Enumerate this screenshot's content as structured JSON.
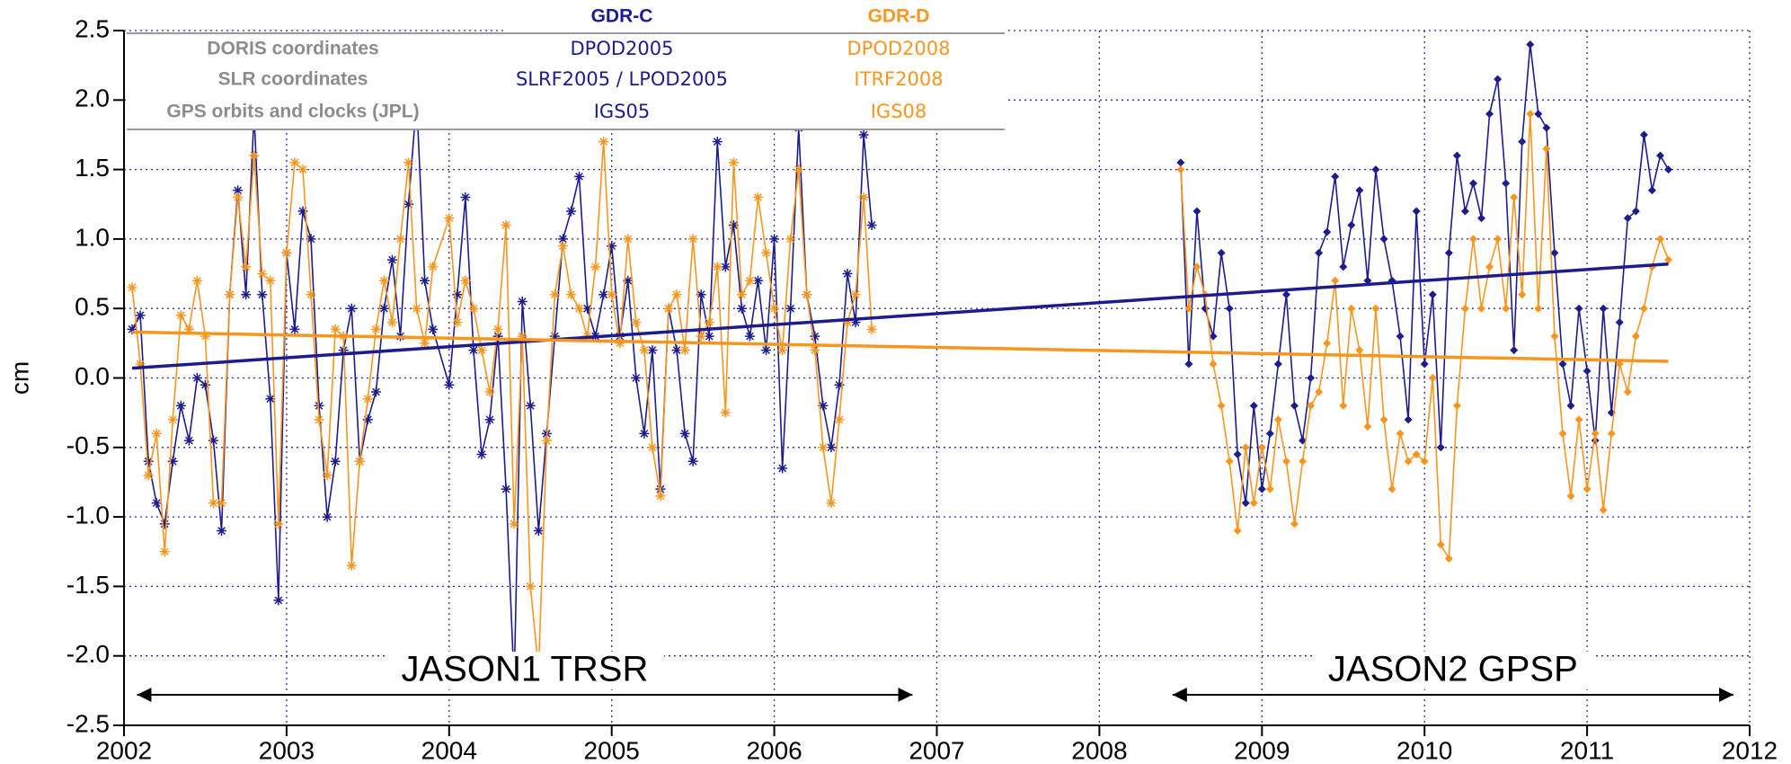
{
  "chart_data": {
    "type": "line",
    "y_label": "cm",
    "xlim": [
      2002,
      2012
    ],
    "xticks": [
      2002,
      2003,
      2004,
      2005,
      2006,
      2007,
      2008,
      2009,
      2010,
      2011,
      2012
    ],
    "ylim": [
      -2.5,
      2.5
    ],
    "yticks": [
      {
        "value": -2.5,
        "label": "-2.5"
      },
      {
        "value": -2,
        "label": "-2.0"
      },
      -1.5,
      {
        "value": -1,
        "label": "-1.0"
      },
      -0.5,
      {
        "value": 0,
        "label": "0.0"
      },
      0.5,
      {
        "value": 1,
        "label": "1.0"
      },
      1.5,
      {
        "value": 2,
        "label": "2.0"
      },
      2.5
    ],
    "grid": true,
    "legend_table": {
      "columns": [
        "GDR-C",
        "GDR-D"
      ],
      "column_colors": [
        "#1c1c8e",
        "#f7961e"
      ],
      "rows": [
        [
          "DORIS coordinates",
          "DPOD2005",
          "DPOD2008"
        ],
        [
          "SLR coordinates",
          "SLRF2005 / LPOD2005",
          "ITRF2008"
        ],
        [
          "GPS orbits and clocks (JPL)",
          "IGS05",
          "IGS08"
        ]
      ]
    },
    "series": [
      {
        "color": "#1c1c8e",
        "marker": "asterisk",
        "x": [
          2002.05,
          2002.1,
          2002.15,
          2002.2,
          2002.25,
          2002.3,
          2002.35,
          2002.4,
          2002.45,
          2002.5,
          2002.55,
          2002.6,
          2002.65,
          2002.7,
          2002.75,
          2002.8,
          2002.85,
          2002.9,
          2002.95,
          2003.0,
          2003.05,
          2003.1,
          2003.15,
          2003.2,
          2003.25,
          2003.3,
          2003.35,
          2003.4,
          2003.45,
          2003.5,
          2003.55,
          2003.6,
          2003.65,
          2003.7,
          2003.75,
          2003.8,
          2003.85,
          2003.9,
          2004.0,
          2004.05,
          2004.1,
          2004.15,
          2004.2,
          2004.25,
          2004.3,
          2004.35,
          2004.4,
          2004.45,
          2004.5,
          2004.55,
          2004.6,
          2004.65,
          2004.7,
          2004.75,
          2004.8,
          2004.85,
          2004.9,
          2004.95,
          2005.0,
          2005.05,
          2005.1,
          2005.15,
          2005.2,
          2005.25,
          2005.3,
          2005.35,
          2005.4,
          2005.45,
          2005.5,
          2005.55,
          2005.6,
          2005.65,
          2005.7,
          2005.75,
          2005.8,
          2005.85,
          2005.9,
          2005.95,
          2006.0,
          2006.05,
          2006.1,
          2006.15,
          2006.2,
          2006.25,
          2006.3,
          2006.35,
          2006.4,
          2006.45,
          2006.5,
          2006.55,
          2006.6
        ],
        "values": [
          0.35,
          0.45,
          -0.6,
          -0.9,
          -1.05,
          -0.6,
          -0.2,
          -0.45,
          0.0,
          -0.05,
          -0.45,
          -1.1,
          0.6,
          1.35,
          0.6,
          1.9,
          0.6,
          -0.15,
          -1.6,
          0.9,
          0.35,
          1.2,
          1.0,
          -0.2,
          -1.0,
          -0.6,
          0.2,
          0.5,
          -0.6,
          -0.3,
          -0.1,
          0.5,
          0.85,
          0.3,
          1.25,
          2.0,
          0.7,
          0.35,
          -0.05,
          0.6,
          1.3,
          0.2,
          -0.55,
          -0.3,
          0.3,
          -0.8,
          -2.2,
          0.55,
          -0.2,
          -1.1,
          -0.4,
          0.3,
          1.0,
          1.2,
          1.45,
          0.5,
          0.3,
          0.6,
          0.95,
          0.3,
          0.7,
          0.0,
          -0.4,
          0.2,
          -0.8,
          0.5,
          0.2,
          -0.4,
          -0.6,
          0.6,
          0.3,
          1.7,
          0.8,
          1.1,
          0.5,
          0.3,
          0.7,
          0.2,
          1.0,
          -0.65,
          0.5,
          1.8,
          0.6,
          0.3,
          -0.2,
          -0.5,
          -0.05,
          0.75,
          0.4,
          1.75,
          1.1
        ]
      },
      {
        "color": "#f7961e",
        "marker": "asterisk",
        "x": [
          2002.05,
          2002.1,
          2002.15,
          2002.2,
          2002.25,
          2002.3,
          2002.35,
          2002.4,
          2002.45,
          2002.5,
          2002.55,
          2002.6,
          2002.65,
          2002.7,
          2002.75,
          2002.8,
          2002.85,
          2002.9,
          2002.95,
          2003.0,
          2003.05,
          2003.1,
          2003.15,
          2003.2,
          2003.25,
          2003.3,
          2003.35,
          2003.4,
          2003.45,
          2003.5,
          2003.55,
          2003.6,
          2003.65,
          2003.7,
          2003.75,
          2003.8,
          2003.85,
          2003.9,
          2004.0,
          2004.05,
          2004.1,
          2004.15,
          2004.2,
          2004.25,
          2004.3,
          2004.35,
          2004.4,
          2004.45,
          2004.5,
          2004.55,
          2004.6,
          2004.65,
          2004.7,
          2004.75,
          2004.8,
          2004.85,
          2004.9,
          2004.95,
          2005.0,
          2005.05,
          2005.1,
          2005.15,
          2005.2,
          2005.25,
          2005.3,
          2005.35,
          2005.4,
          2005.45,
          2005.5,
          2005.55,
          2005.6,
          2005.65,
          2005.7,
          2005.75,
          2005.8,
          2005.85,
          2005.9,
          2005.95,
          2006.0,
          2006.05,
          2006.1,
          2006.15,
          2006.2,
          2006.25,
          2006.3,
          2006.35,
          2006.4,
          2006.45,
          2006.5,
          2006.55,
          2006.6
        ],
        "values": [
          0.65,
          0.1,
          -0.7,
          -0.4,
          -1.25,
          -0.3,
          0.45,
          0.35,
          0.7,
          0.3,
          -0.9,
          -0.9,
          0.6,
          1.3,
          0.8,
          1.6,
          0.75,
          0.7,
          -1.05,
          0.9,
          1.55,
          1.5,
          0.6,
          -0.3,
          -0.7,
          0.35,
          0.3,
          -1.35,
          -0.6,
          -0.15,
          0.35,
          0.7,
          0.4,
          1.0,
          1.55,
          0.5,
          0.25,
          0.8,
          1.15,
          0.4,
          0.7,
          0.5,
          0.2,
          -0.1,
          0.35,
          1.1,
          -1.05,
          0.3,
          -1.5,
          -2.1,
          -0.45,
          0.6,
          0.95,
          0.6,
          0.5,
          0.3,
          0.8,
          1.7,
          0.6,
          0.25,
          1.0,
          0.4,
          0.2,
          -0.5,
          -0.85,
          0.5,
          0.6,
          0.2,
          1.0,
          0.3,
          0.4,
          0.8,
          -0.25,
          1.55,
          0.6,
          0.7,
          1.3,
          0.9,
          0.5,
          0.2,
          1.0,
          1.5,
          0.6,
          0.2,
          -0.5,
          -0.9,
          -0.3,
          0.4,
          0.6,
          1.3,
          0.35
        ]
      },
      {
        "color": "#1c1c8e",
        "marker": "diamond",
        "x": [
          2008.5,
          2008.55,
          2008.6,
          2008.65,
          2008.7,
          2008.75,
          2008.8,
          2008.85,
          2008.9,
          2008.95,
          2009.0,
          2009.05,
          2009.1,
          2009.15,
          2009.2,
          2009.25,
          2009.3,
          2009.35,
          2009.4,
          2009.45,
          2009.5,
          2009.55,
          2009.6,
          2009.65,
          2009.7,
          2009.75,
          2009.8,
          2009.85,
          2009.9,
          2009.95,
          2010.0,
          2010.05,
          2010.1,
          2010.15,
          2010.2,
          2010.25,
          2010.3,
          2010.35,
          2010.4,
          2010.45,
          2010.5,
          2010.55,
          2010.6,
          2010.65,
          2010.7,
          2010.75,
          2010.8,
          2010.85,
          2010.9,
          2010.95,
          2011.0,
          2011.05,
          2011.1,
          2011.15,
          2011.2,
          2011.25,
          2011.3,
          2011.35,
          2011.4,
          2011.45,
          2011.5
        ],
        "values": [
          1.55,
          0.1,
          1.2,
          0.5,
          0.3,
          0.9,
          0.5,
          -0.55,
          -0.9,
          -0.2,
          -0.8,
          -0.4,
          0.1,
          0.6,
          -0.2,
          -0.45,
          0.0,
          0.9,
          1.05,
          1.45,
          0.8,
          1.1,
          1.35,
          0.7,
          1.5,
          1.0,
          0.7,
          0.3,
          -0.3,
          1.2,
          0.1,
          0.6,
          -0.5,
          0.9,
          1.6,
          1.2,
          1.4,
          1.15,
          1.9,
          2.15,
          1.4,
          0.2,
          1.7,
          2.4,
          1.9,
          1.8,
          0.9,
          0.1,
          -0.2,
          0.5,
          0.05,
          -0.45,
          0.5,
          -0.25,
          0.4,
          1.15,
          1.2,
          1.75,
          1.35,
          1.6,
          1.5
        ]
      },
      {
        "color": "#f7961e",
        "marker": "diamond",
        "x": [
          2008.5,
          2008.55,
          2008.6,
          2008.65,
          2008.7,
          2008.75,
          2008.8,
          2008.85,
          2008.9,
          2008.95,
          2009.0,
          2009.05,
          2009.1,
          2009.15,
          2009.2,
          2009.25,
          2009.3,
          2009.35,
          2009.4,
          2009.45,
          2009.5,
          2009.55,
          2009.6,
          2009.65,
          2009.7,
          2009.75,
          2009.8,
          2009.85,
          2009.9,
          2009.95,
          2010.0,
          2010.05,
          2010.1,
          2010.15,
          2010.2,
          2010.25,
          2010.3,
          2010.35,
          2010.4,
          2010.45,
          2010.5,
          2010.55,
          2010.6,
          2010.65,
          2010.7,
          2010.75,
          2010.8,
          2010.85,
          2010.9,
          2010.95,
          2011.0,
          2011.05,
          2011.1,
          2011.15,
          2011.2,
          2011.25,
          2011.3,
          2011.35,
          2011.4,
          2011.45,
          2011.5
        ],
        "values": [
          1.5,
          0.5,
          0.8,
          0.6,
          0.1,
          -0.2,
          -0.6,
          -1.1,
          -0.5,
          -0.9,
          -0.5,
          -0.8,
          -0.3,
          -0.6,
          -1.05,
          -0.6,
          -0.2,
          -0.1,
          0.25,
          0.7,
          -0.2,
          0.5,
          0.2,
          -0.35,
          0.5,
          -0.3,
          -0.8,
          -0.4,
          -0.6,
          -0.55,
          -0.6,
          0.0,
          -1.2,
          -1.3,
          -0.2,
          0.5,
          1.0,
          0.5,
          0.8,
          1.0,
          0.5,
          1.3,
          0.6,
          1.9,
          0.5,
          1.65,
          0.3,
          -0.4,
          -0.85,
          -0.3,
          -0.8,
          -0.4,
          -0.95,
          -0.4,
          0.1,
          -0.1,
          0.3,
          0.5,
          0.8,
          1.0,
          0.85
        ]
      }
    ],
    "trend_lines": [
      {
        "color": "#1c1c8e",
        "x": [
          2002.05,
          2011.5
        ],
        "values": [
          0.07,
          0.82
        ]
      },
      {
        "color": "#f7961e",
        "x": [
          2002.05,
          2011.5
        ],
        "values": [
          0.33,
          0.12
        ]
      }
    ],
    "annotations": [
      {
        "text": "JASON1 TRSR",
        "span": [
          2002.08,
          2006.85
        ],
        "y": -2.28
      },
      {
        "text": "JASON2 GPSP",
        "span": [
          2008.45,
          2011.9
        ],
        "y": -2.28
      }
    ]
  }
}
